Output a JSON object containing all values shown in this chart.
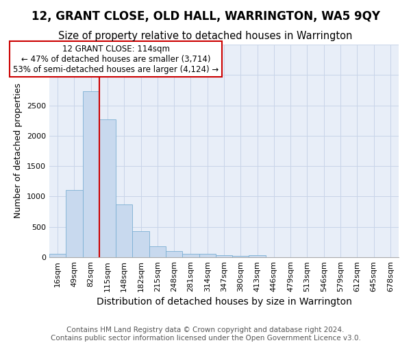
{
  "title": "12, GRANT CLOSE, OLD HALL, WARRINGTON, WA5 9QY",
  "subtitle": "Size of property relative to detached houses in Warrington",
  "xlabel": "Distribution of detached houses by size in Warrington",
  "ylabel": "Number of detached properties",
  "categories": [
    "16sqm",
    "49sqm",
    "82sqm",
    "115sqm",
    "148sqm",
    "182sqm",
    "215sqm",
    "248sqm",
    "281sqm",
    "314sqm",
    "347sqm",
    "380sqm",
    "413sqm",
    "446sqm",
    "479sqm",
    "513sqm",
    "546sqm",
    "579sqm",
    "612sqm",
    "645sqm",
    "678sqm"
  ],
  "values": [
    55,
    1110,
    2730,
    2270,
    870,
    430,
    185,
    100,
    60,
    55,
    35,
    25,
    30,
    0,
    0,
    0,
    0,
    0,
    0,
    0,
    0
  ],
  "bar_color": "#c8d9ee",
  "bar_edge_color": "#7bafd4",
  "grid_color": "#c8d4e8",
  "background_color": "#e8eef8",
  "annotation_text_line1": "12 GRANT CLOSE: 114sqm",
  "annotation_text_line2": "← 47% of detached houses are smaller (3,714)",
  "annotation_text_line3": "53% of semi-detached houses are larger (4,124) →",
  "annotation_box_facecolor": "#ffffff",
  "annotation_box_edgecolor": "#cc0000",
  "red_line_color": "#cc0000",
  "footer_line1": "Contains HM Land Registry data © Crown copyright and database right 2024.",
  "footer_line2": "Contains public sector information licensed under the Open Government Licence v3.0.",
  "ylim": [
    0,
    3500
  ],
  "red_line_bar_index": 3,
  "title_fontsize": 12,
  "subtitle_fontsize": 10.5,
  "xlabel_fontsize": 10,
  "ylabel_fontsize": 9,
  "tick_fontsize": 8,
  "annotation_fontsize": 8.5,
  "footer_fontsize": 7.5
}
